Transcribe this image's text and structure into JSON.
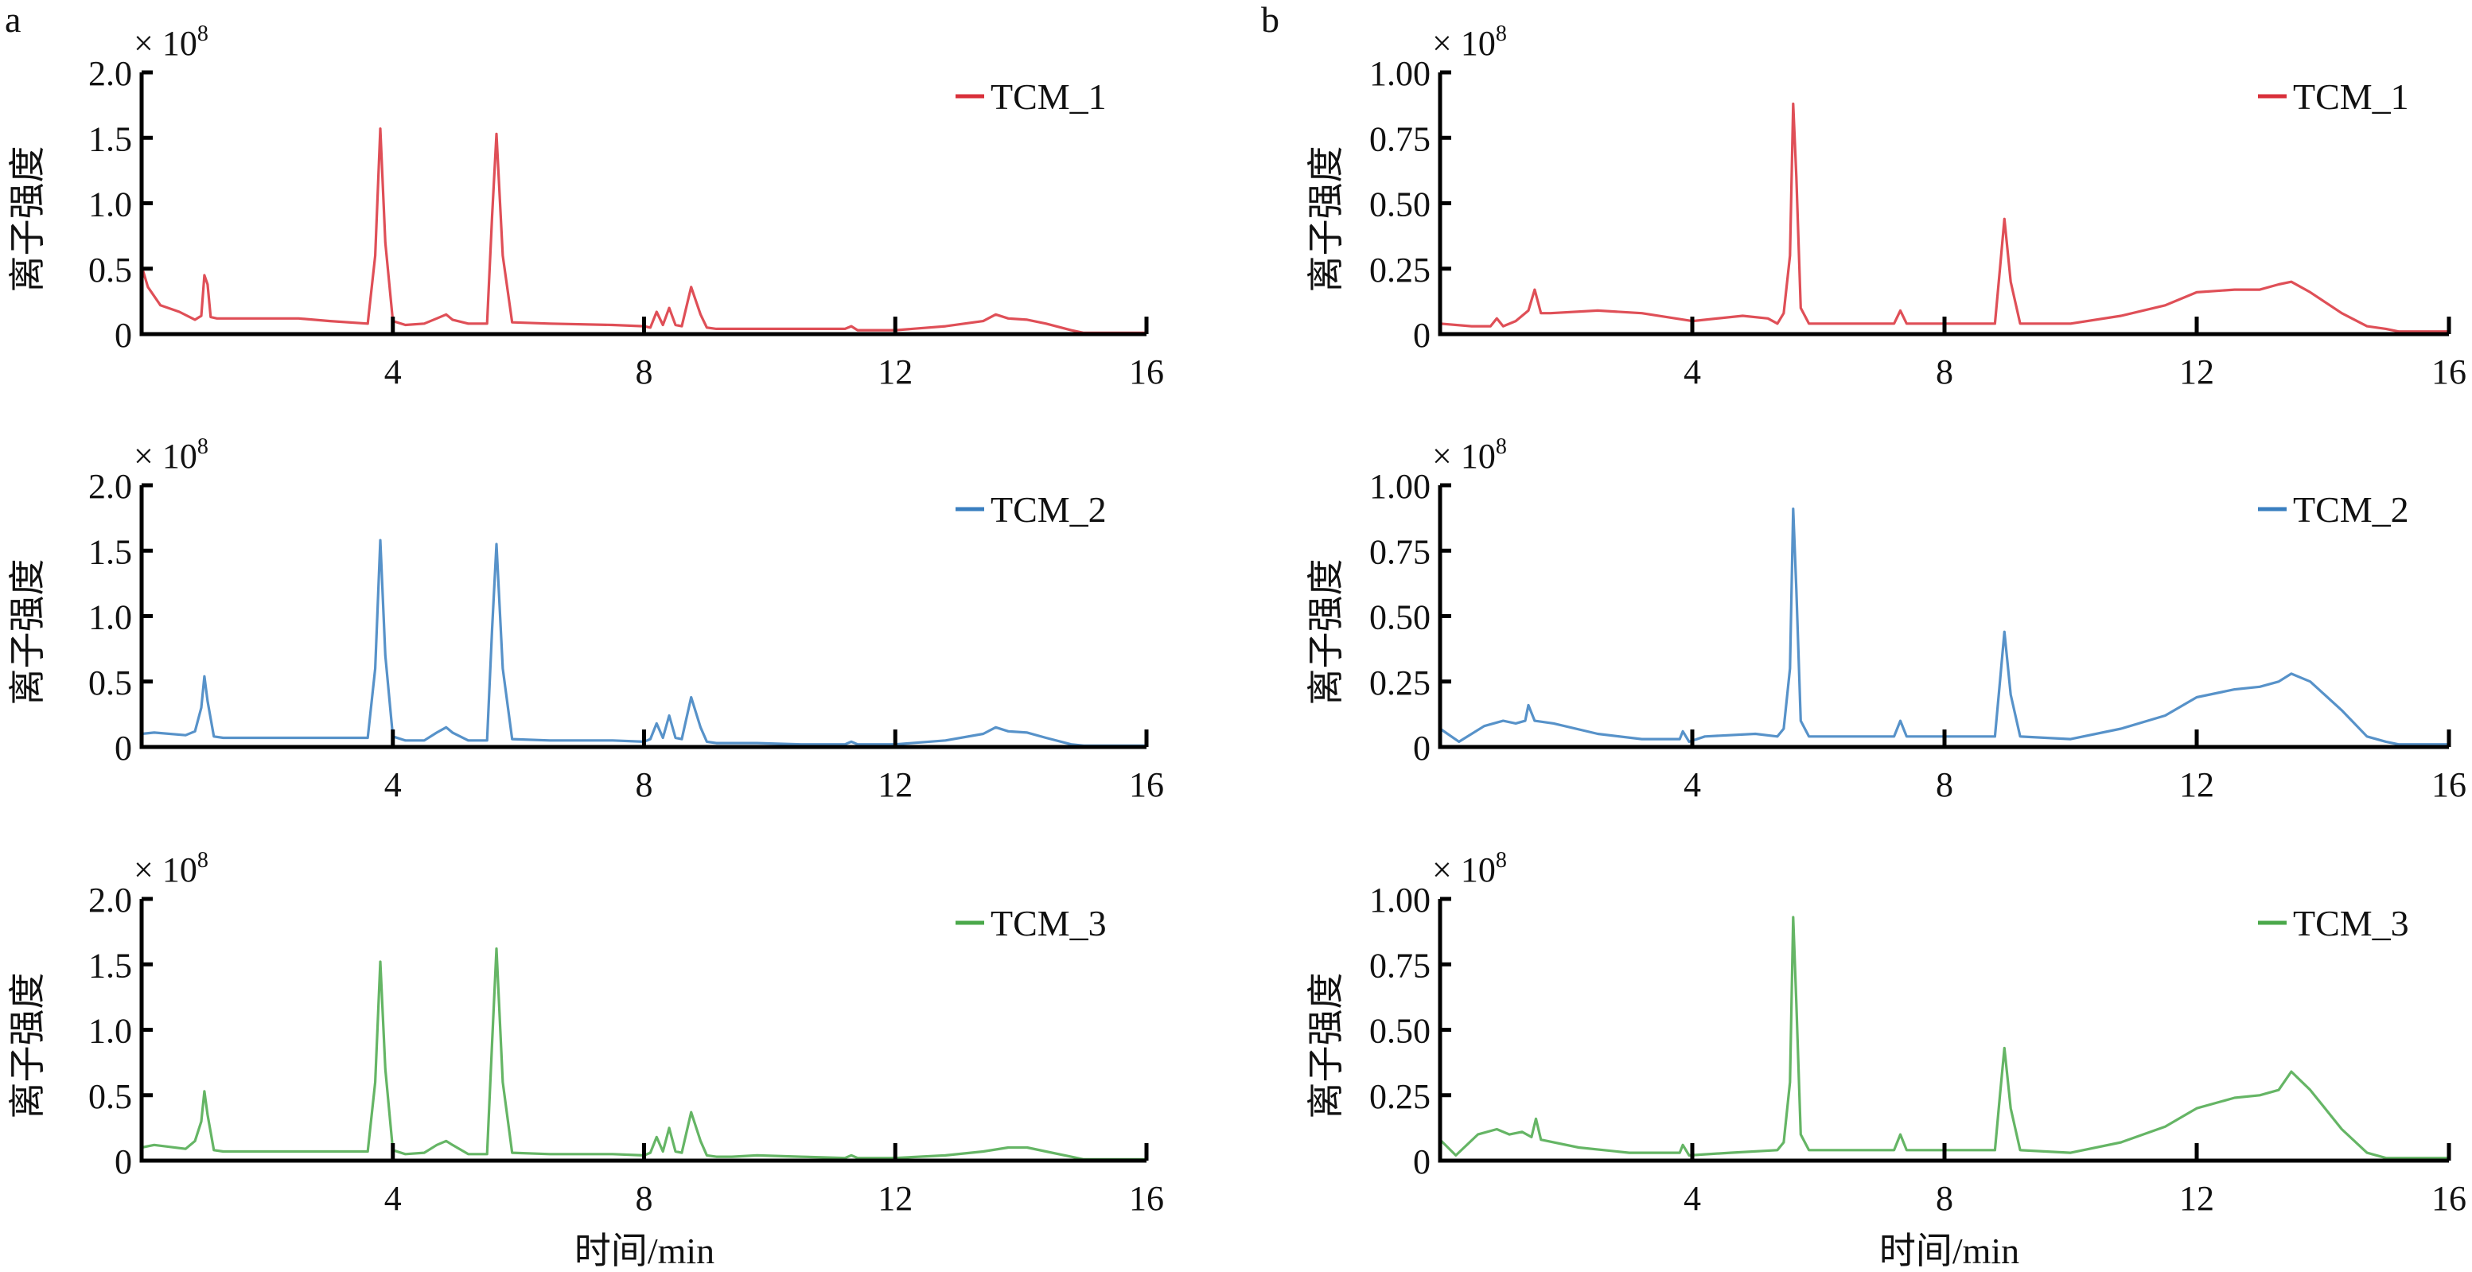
{
  "figure": {
    "panel_letters": [
      "a",
      "b"
    ],
    "multiplier_label": "× 10",
    "multiplier_exponent": "8",
    "ylabel": "离子强度",
    "xlabel": "时间/min"
  },
  "chart_data": [
    {
      "panel": "a",
      "type": "line",
      "xlabel": "时间/min",
      "ylabel": "离子强度",
      "y_multiplier": "×10^8",
      "xlim": [
        0,
        16
      ],
      "xticks": [
        4,
        8,
        12,
        16
      ],
      "subplots": [
        {
          "name": "TCM_1",
          "color": "#d9303a",
          "ylim": [
            0,
            2.0
          ],
          "yticks": [
            "0",
            "0.5",
            "1.0",
            "1.5",
            "2.0"
          ],
          "legend": "top-right",
          "x": [
            0,
            0.1,
            0.3,
            0.6,
            0.85,
            0.95,
            1.0,
            1.05,
            1.1,
            1.2,
            1.4,
            2.5,
            3.0,
            3.6,
            3.72,
            3.8,
            3.88,
            4.0,
            4.2,
            4.5,
            4.7,
            4.85,
            4.95,
            5.2,
            5.5,
            5.58,
            5.65,
            5.75,
            5.9,
            6.5,
            7.5,
            8.0,
            8.1,
            8.2,
            8.3,
            8.4,
            8.5,
            8.6,
            8.75,
            8.9,
            9.0,
            9.15,
            9.4,
            9.8,
            10.5,
            11.2,
            11.3,
            11.4,
            12.0,
            12.8,
            13.4,
            13.6,
            13.8,
            14.1,
            14.4,
            14.8,
            15.0,
            16.0
          ],
          "y": [
            0.52,
            0.36,
            0.22,
            0.17,
            0.11,
            0.14,
            0.45,
            0.38,
            0.13,
            0.12,
            0.12,
            0.12,
            0.1,
            0.08,
            0.6,
            1.57,
            0.7,
            0.1,
            0.07,
            0.08,
            0.12,
            0.15,
            0.11,
            0.08,
            0.08,
            0.9,
            1.53,
            0.6,
            0.09,
            0.08,
            0.07,
            0.06,
            0.05,
            0.17,
            0.07,
            0.2,
            0.07,
            0.06,
            0.36,
            0.15,
            0.05,
            0.04,
            0.04,
            0.04,
            0.04,
            0.04,
            0.06,
            0.03,
            0.03,
            0.06,
            0.1,
            0.15,
            0.12,
            0.11,
            0.08,
            0.03,
            0.01,
            0.01
          ]
        },
        {
          "name": "TCM_2",
          "color": "#3a7fc0",
          "ylim": [
            0,
            2.0
          ],
          "yticks": [
            "0",
            "0.5",
            "1.0",
            "1.5",
            "2.0"
          ],
          "legend": "top-right",
          "x": [
            0,
            0.2,
            0.7,
            0.85,
            0.95,
            1.0,
            1.05,
            1.15,
            1.3,
            2.5,
            3.6,
            3.72,
            3.8,
            3.88,
            4.0,
            4.2,
            4.5,
            4.7,
            4.85,
            4.95,
            5.2,
            5.5,
            5.58,
            5.65,
            5.75,
            5.9,
            6.5,
            7.5,
            8.0,
            8.1,
            8.2,
            8.3,
            8.4,
            8.5,
            8.6,
            8.75,
            8.9,
            9.0,
            9.15,
            9.4,
            9.8,
            10.5,
            11.2,
            11.3,
            11.4,
            12.0,
            12.8,
            13.4,
            13.6,
            13.8,
            14.1,
            14.4,
            14.8,
            15.0,
            16.0
          ],
          "y": [
            0.1,
            0.11,
            0.09,
            0.12,
            0.3,
            0.54,
            0.35,
            0.08,
            0.07,
            0.07,
            0.07,
            0.6,
            1.58,
            0.7,
            0.08,
            0.05,
            0.05,
            0.11,
            0.15,
            0.11,
            0.05,
            0.05,
            0.9,
            1.55,
            0.6,
            0.06,
            0.05,
            0.05,
            0.04,
            0.06,
            0.18,
            0.07,
            0.24,
            0.07,
            0.06,
            0.38,
            0.15,
            0.04,
            0.03,
            0.03,
            0.03,
            0.02,
            0.02,
            0.04,
            0.02,
            0.02,
            0.05,
            0.1,
            0.15,
            0.12,
            0.11,
            0.07,
            0.02,
            0.01,
            0.01
          ]
        },
        {
          "name": "TCM_3",
          "color": "#4aa84a",
          "ylim": [
            0,
            2.0
          ],
          "yticks": [
            "0",
            "0.5",
            "1.0",
            "1.5",
            "2.0"
          ],
          "legend": "top-right",
          "x": [
            0,
            0.2,
            0.7,
            0.85,
            0.95,
            1.0,
            1.05,
            1.15,
            1.3,
            2.5,
            3.6,
            3.72,
            3.8,
            3.88,
            4.0,
            4.2,
            4.5,
            4.7,
            4.85,
            4.95,
            5.2,
            5.5,
            5.58,
            5.65,
            5.75,
            5.9,
            6.5,
            7.5,
            8.0,
            8.1,
            8.2,
            8.3,
            8.4,
            8.5,
            8.6,
            8.75,
            8.9,
            9.0,
            9.15,
            9.4,
            9.8,
            10.5,
            11.2,
            11.3,
            11.4,
            12.0,
            12.8,
            13.4,
            13.8,
            14.1,
            14.4,
            14.8,
            15.0,
            16.0
          ],
          "y": [
            0.1,
            0.12,
            0.09,
            0.15,
            0.3,
            0.53,
            0.35,
            0.08,
            0.07,
            0.07,
            0.07,
            0.6,
            1.52,
            0.7,
            0.08,
            0.05,
            0.06,
            0.12,
            0.15,
            0.12,
            0.05,
            0.05,
            0.9,
            1.62,
            0.6,
            0.06,
            0.05,
            0.05,
            0.04,
            0.06,
            0.18,
            0.07,
            0.25,
            0.07,
            0.06,
            0.37,
            0.15,
            0.04,
            0.03,
            0.03,
            0.04,
            0.03,
            0.02,
            0.04,
            0.02,
            0.02,
            0.04,
            0.07,
            0.1,
            0.1,
            0.07,
            0.03,
            0.01,
            0.01
          ]
        }
      ]
    },
    {
      "panel": "b",
      "type": "line",
      "xlabel": "时间/min",
      "ylabel": "离子强度",
      "y_multiplier": "×10^8",
      "xlim": [
        0,
        16
      ],
      "xticks": [
        4,
        8,
        12,
        16
      ],
      "subplots": [
        {
          "name": "TCM_1",
          "color": "#d9303a",
          "ylim": [
            0,
            1.0
          ],
          "yticks": [
            "0",
            "0.25",
            "0.50",
            "0.75",
            "1.00"
          ],
          "legend": "top-right",
          "x": [
            0,
            0.5,
            0.8,
            0.9,
            1.0,
            1.2,
            1.4,
            1.5,
            1.6,
            1.75,
            2.5,
            3.2,
            4.0,
            4.8,
            5.2,
            5.35,
            5.45,
            5.55,
            5.6,
            5.65,
            5.72,
            5.85,
            6.5,
            7.2,
            7.3,
            7.4,
            8.0,
            8.8,
            8.88,
            8.95,
            9.05,
            9.2,
            10.0,
            10.8,
            11.5,
            12.0,
            12.6,
            13.0,
            13.3,
            13.5,
            13.8,
            14.3,
            14.7,
            15.0,
            15.2,
            16.0
          ],
          "y": [
            0.04,
            0.03,
            0.03,
            0.06,
            0.03,
            0.05,
            0.09,
            0.17,
            0.08,
            0.08,
            0.09,
            0.08,
            0.05,
            0.07,
            0.06,
            0.04,
            0.08,
            0.3,
            0.88,
            0.6,
            0.1,
            0.04,
            0.04,
            0.04,
            0.09,
            0.04,
            0.04,
            0.04,
            0.25,
            0.44,
            0.2,
            0.04,
            0.04,
            0.07,
            0.11,
            0.16,
            0.17,
            0.17,
            0.19,
            0.2,
            0.16,
            0.08,
            0.03,
            0.02,
            0.01,
            0.01
          ]
        },
        {
          "name": "TCM_2",
          "color": "#3a7fc0",
          "ylim": [
            0,
            1.0
          ],
          "yticks": [
            "0",
            "0.25",
            "0.50",
            "0.75",
            "1.00"
          ],
          "legend": "top-right",
          "x": [
            0,
            0.3,
            0.7,
            1.0,
            1.2,
            1.35,
            1.4,
            1.5,
            1.8,
            2.5,
            3.2,
            3.8,
            3.85,
            3.95,
            4.2,
            5.0,
            5.35,
            5.45,
            5.55,
            5.6,
            5.65,
            5.72,
            5.85,
            6.5,
            7.2,
            7.3,
            7.4,
            8.0,
            8.8,
            8.88,
            8.95,
            9.05,
            9.2,
            10.0,
            10.8,
            11.5,
            12.0,
            12.6,
            13.0,
            13.3,
            13.5,
            13.8,
            14.3,
            14.7,
            15.0,
            15.2,
            16.0
          ],
          "y": [
            0.07,
            0.02,
            0.08,
            0.1,
            0.09,
            0.1,
            0.16,
            0.1,
            0.09,
            0.05,
            0.03,
            0.03,
            0.06,
            0.02,
            0.04,
            0.05,
            0.04,
            0.07,
            0.3,
            0.91,
            0.6,
            0.1,
            0.04,
            0.04,
            0.04,
            0.1,
            0.04,
            0.04,
            0.04,
            0.25,
            0.44,
            0.2,
            0.04,
            0.03,
            0.07,
            0.12,
            0.19,
            0.22,
            0.23,
            0.25,
            0.28,
            0.25,
            0.14,
            0.04,
            0.02,
            0.01,
            0.01
          ]
        },
        {
          "name": "TCM_3",
          "color": "#4aa84a",
          "ylim": [
            0,
            1.0
          ],
          "yticks": [
            "0",
            "0.25",
            "0.50",
            "0.75",
            "1.00"
          ],
          "legend": "top-right",
          "x": [
            0,
            0.25,
            0.6,
            0.9,
            1.1,
            1.3,
            1.45,
            1.52,
            1.6,
            2.2,
            3.0,
            3.8,
            3.85,
            3.95,
            4.6,
            5.35,
            5.45,
            5.55,
            5.6,
            5.65,
            5.72,
            5.85,
            6.5,
            7.2,
            7.3,
            7.4,
            8.0,
            8.8,
            8.88,
            8.95,
            9.05,
            9.2,
            10.0,
            10.8,
            11.5,
            12.0,
            12.6,
            13.0,
            13.3,
            13.5,
            13.8,
            14.3,
            14.7,
            15.0,
            15.2,
            16.0
          ],
          "y": [
            0.08,
            0.02,
            0.1,
            0.12,
            0.1,
            0.11,
            0.09,
            0.16,
            0.08,
            0.05,
            0.03,
            0.03,
            0.06,
            0.02,
            0.03,
            0.04,
            0.07,
            0.3,
            0.93,
            0.6,
            0.1,
            0.04,
            0.04,
            0.04,
            0.1,
            0.04,
            0.04,
            0.04,
            0.25,
            0.43,
            0.2,
            0.04,
            0.03,
            0.07,
            0.13,
            0.2,
            0.24,
            0.25,
            0.27,
            0.34,
            0.27,
            0.12,
            0.03,
            0.01,
            0.01,
            0.01
          ]
        }
      ]
    }
  ]
}
